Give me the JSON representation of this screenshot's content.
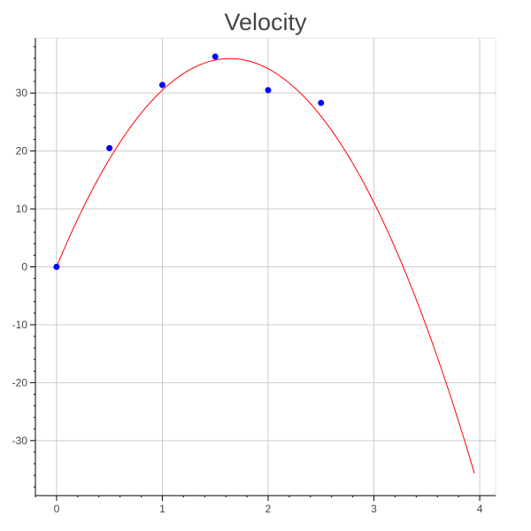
{
  "chart_data": {
    "type": "scatter",
    "title": "Velocity",
    "xlabel": "",
    "ylabel": "",
    "xlim": [
      -0.2,
      4.15
    ],
    "ylim": [
      -39.5,
      39.5
    ],
    "x_ticks": [
      0,
      1,
      2,
      3,
      4
    ],
    "y_ticks": [
      -30,
      -20,
      -10,
      0,
      10,
      20,
      30
    ],
    "grid": true,
    "legend": "none",
    "series": [
      {
        "kind": "scatter",
        "color": "#0000ff",
        "x": [
          0,
          0.5,
          1.0,
          1.5,
          2.0,
          2.5
        ],
        "y": [
          0.0,
          20.5,
          31.4,
          36.3,
          30.5,
          28.3
        ]
      },
      {
        "kind": "line",
        "color": "#ff0000",
        "fit": "quadratic",
        "coefficients": {
          "a": -13.4,
          "b": 43.9,
          "c": 0.0
        },
        "x_range": [
          0,
          3.95
        ]
      }
    ]
  }
}
